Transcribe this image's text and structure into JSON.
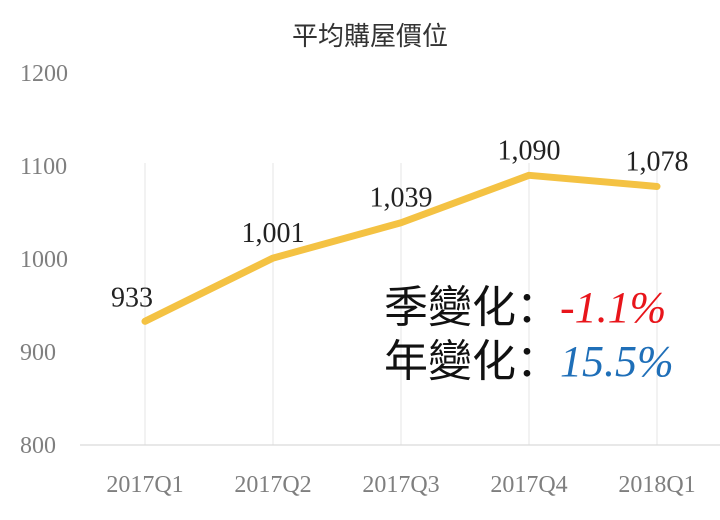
{
  "chart_data": {
    "type": "line",
    "title": "平均購屋價位",
    "categories": [
      "2017Q1",
      "2017Q2",
      "2017Q3",
      "2017Q4",
      "2018Q1"
    ],
    "series": [
      {
        "values": [
          933,
          1001,
          1039,
          1090,
          1078
        ],
        "data_labels": [
          "933",
          "1,001",
          "1,039",
          "1,090",
          "1,078"
        ],
        "color": "#F4C243"
      }
    ],
    "ylim": [
      800,
      1200
    ],
    "yticks": [
      800,
      900,
      1000,
      1100,
      1200
    ],
    "grid": "vertical-at-categories",
    "legend": "none"
  },
  "annotations": {
    "qoq": {
      "label": "季變化",
      "colon": "：",
      "value": "-1.1%",
      "color": "#E8151B"
    },
    "yoy": {
      "label": "年變化",
      "colon": "：",
      "value": "15.5%",
      "color": "#1F6FB8"
    }
  }
}
